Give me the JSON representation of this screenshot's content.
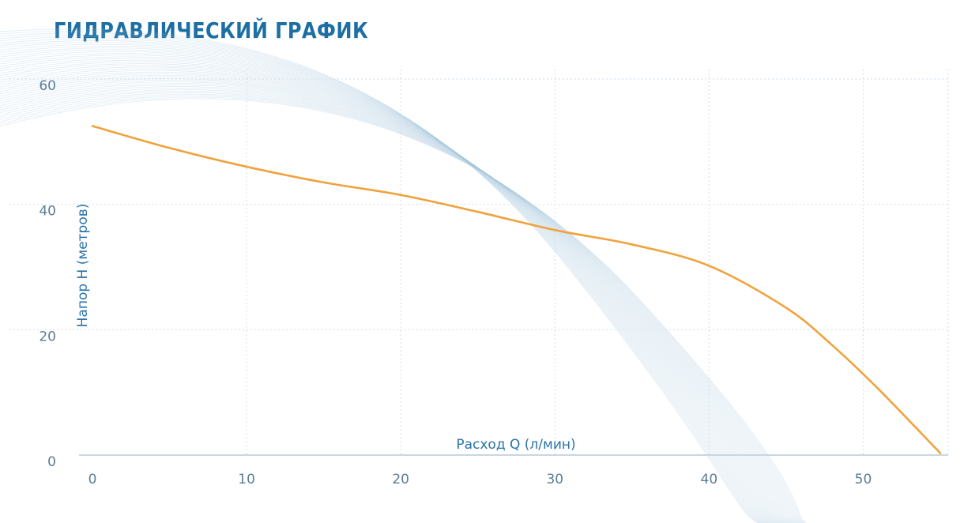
{
  "colors": {
    "title": "#1d6fa3",
    "axis_label": "#2b74a8",
    "tick": "#5a7d96",
    "curve": "#f0a23c",
    "grid": "#d7e3ec",
    "axis": "#c9d6e0",
    "wave": "#a9c8dd"
  },
  "chart_data": {
    "type": "line",
    "title": "ГИДРАВЛИЧЕСКИЙ ГРАФИК",
    "xlabel": "Расход Q (л/мин)",
    "ylabel": "Напор H (метров)",
    "xlim": [
      0,
      55
    ],
    "ylim": [
      0,
      60
    ],
    "x_ticks": [
      0,
      10,
      20,
      30,
      40,
      50
    ],
    "y_ticks": [
      0,
      20,
      40,
      60
    ],
    "grid": true,
    "legend": "none",
    "series": [
      {
        "x": [
          0,
          5,
          10,
          15,
          20,
          25,
          30,
          35,
          40,
          45,
          48,
          51,
          55
        ],
        "y": [
          52.5,
          49,
          46,
          43.5,
          41.5,
          38.8,
          35.9,
          33.6,
          30.2,
          23.5,
          17.5,
          10.5,
          0.3
        ]
      }
    ]
  }
}
